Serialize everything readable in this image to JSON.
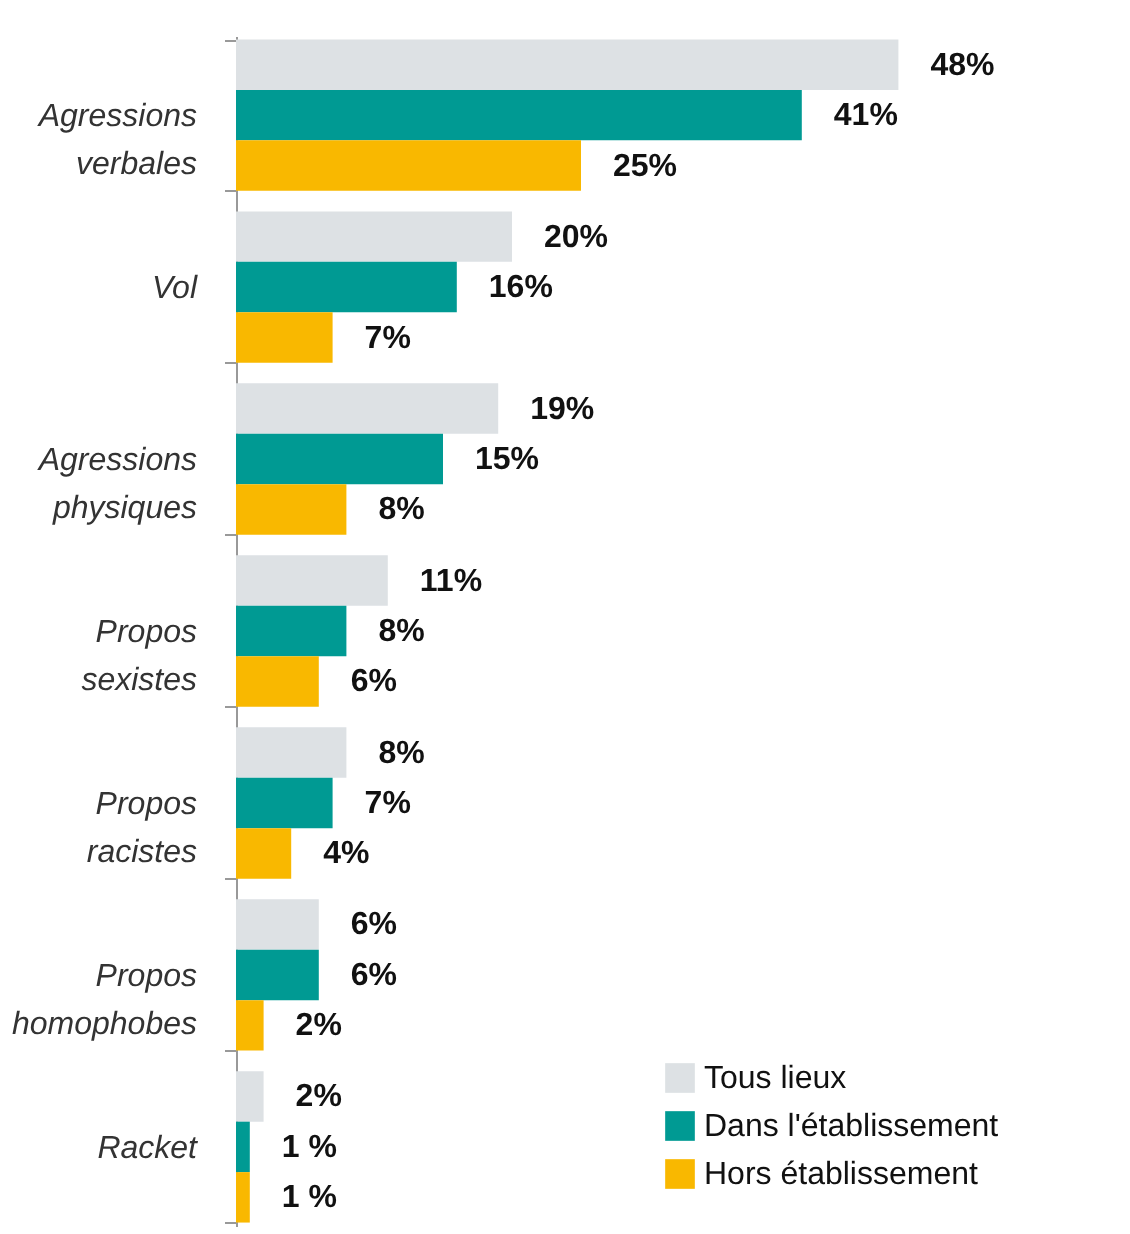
{
  "chart_data": {
    "type": "bar",
    "orientation": "horizontal",
    "categories": [
      "Agressions verbales",
      "Vol",
      "Agressions physiques",
      "Propos sexistes",
      "Propos racistes",
      "Propos homophobes",
      "Racket"
    ],
    "series": [
      {
        "name": "Tous lieux",
        "color": "#dde1e4",
        "values": [
          48,
          20,
          19,
          11,
          8,
          6,
          2
        ],
        "value_labels": [
          "48%",
          "20%",
          "19%",
          "11%",
          "8%",
          "6%",
          "2%"
        ]
      },
      {
        "name": "Dans l'établissement",
        "color": "#009a93",
        "values": [
          41,
          16,
          15,
          8,
          7,
          6,
          1
        ],
        "value_labels": [
          "41%",
          "16%",
          "15%",
          "8%",
          "7%",
          "6%",
          "1 %"
        ]
      },
      {
        "name": "Hors établissement",
        "color": "#f9b800",
        "values": [
          25,
          7,
          8,
          6,
          4,
          2,
          1
        ],
        "value_labels": [
          "25%",
          "7%",
          "8%",
          "6%",
          "4%",
          "2%",
          "1 %"
        ]
      }
    ],
    "legend": "bottom right"
  }
}
